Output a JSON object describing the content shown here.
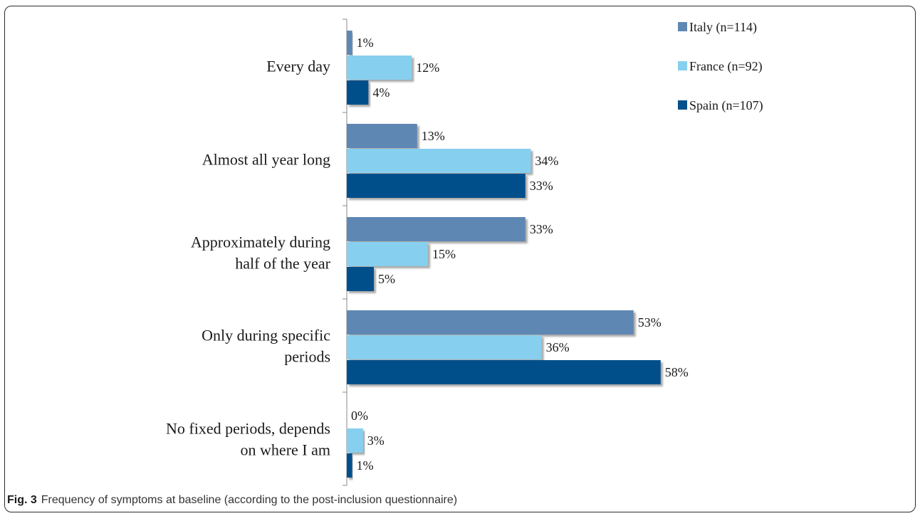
{
  "figure": {
    "label": "Fig. 3",
    "caption": "Frequency of symptoms at baseline (according to the post-inclusion questionnaire)"
  },
  "chart_data": {
    "type": "bar",
    "orientation": "horizontal",
    "categories": [
      [
        "Every day"
      ],
      [
        "Almost all year long"
      ],
      [
        "Approximately during",
        "half of the year"
      ],
      [
        "Only during specific",
        "periods"
      ],
      [
        "No fixed periods, depends",
        "on where I am"
      ]
    ],
    "series": [
      {
        "name": "Italy (n=114)",
        "color": "#5f87b3",
        "values": [
          1,
          13,
          33,
          53,
          0
        ],
        "labels": [
          "1%",
          "13%",
          "33%",
          "53%",
          "0%"
        ]
      },
      {
        "name": "France (n=92)",
        "color": "#87cfee",
        "values": [
          12,
          34,
          15,
          36,
          3
        ],
        "labels": [
          "12%",
          "34%",
          "15%",
          "36%",
          "3%"
        ]
      },
      {
        "name": "Spain (n=107)",
        "color": "#03508b",
        "values": [
          4,
          33,
          5,
          58,
          1
        ],
        "labels": [
          "4%",
          "33%",
          "5%",
          "58%",
          "1%"
        ]
      }
    ],
    "xlim": [
      0,
      60
    ],
    "legend": "top-right",
    "grid": false
  }
}
